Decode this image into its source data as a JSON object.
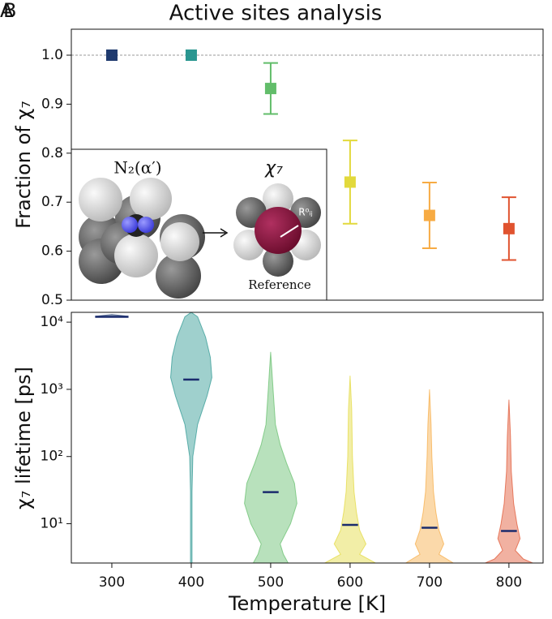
{
  "chart_data": [
    {
      "type": "scatter",
      "title": "Active sites analysis",
      "panel_label": "A",
      "ylabel": "Fraction of χ₇",
      "x": [
        300,
        400,
        500,
        600,
        700,
        800
      ],
      "values": [
        1.0,
        1.0,
        0.932,
        0.741,
        0.673,
        0.646
      ],
      "errors": [
        0,
        0,
        0.052,
        0.085,
        0.067,
        0.064
      ],
      "colors": [
        "#1f3a6e",
        "#2a9690",
        "#62bd6a",
        "#e2d93c",
        "#f7ab43",
        "#e0532f"
      ],
      "xlim": [
        249,
        843
      ],
      "ylim": [
        0.5,
        1.053
      ],
      "yticks": [
        0.5,
        0.6,
        0.7,
        0.8,
        0.9,
        {
          "value": 1,
          "label": "1.0"
        }
      ],
      "hline": 1,
      "inset": {
        "left_label": "N₂(α′)",
        "right_label": "χ₇",
        "distance_label": "R⁰ᵢⱼ",
        "caption": "Reference"
      }
    },
    {
      "type": "violin",
      "panel_label": "B",
      "xlabel": "Temperature [K]",
      "ylabel": "χ₇ lifetime [ps]",
      "x": [
        300,
        400,
        500,
        600,
        700,
        800
      ],
      "medians": [
        12000,
        1400,
        29.5,
        9.6,
        8.7,
        7.8
      ],
      "colors": [
        "#1f3a6e",
        "#2a9690",
        "#62bd6a",
        "#e2d93c",
        "#f7ab43",
        "#e0532f"
      ],
      "median_color": "#1a2b6d",
      "violins": [
        {
          "values": [
            13000,
            12200,
            12000
          ],
          "widths": [
            0,
            21,
            0
          ]
        },
        {
          "values": [
            14000,
            12000,
            6000,
            3000,
            1500,
            800,
            300,
            100,
            30,
            2.6
          ],
          "widths": [
            0,
            8,
            18,
            24,
            26,
            20,
            8,
            2,
            1,
            1
          ]
        },
        {
          "values": [
            3600,
            1000,
            300,
            150,
            80,
            40,
            20,
            10,
            5,
            3.5,
            2.6
          ],
          "widths": [
            0,
            3,
            6,
            12,
            20,
            30,
            33,
            25,
            12,
            16,
            22
          ]
        },
        {
          "values": [
            1600,
            500,
            100,
            30,
            15,
            8,
            5,
            3.5,
            2.6
          ],
          "widths": [
            0,
            2,
            3,
            5,
            8,
            12,
            20,
            12,
            32
          ]
        },
        {
          "values": [
            1000,
            300,
            100,
            30,
            15,
            8,
            5,
            3.5,
            2.6
          ],
          "widths": [
            0,
            2,
            3,
            5,
            8,
            12,
            18,
            12,
            30
          ]
        },
        {
          "values": [
            700,
            200,
            60,
            20,
            10,
            6,
            4,
            3,
            2.6
          ],
          "widths": [
            0,
            2,
            3,
            6,
            10,
            14,
            8,
            18,
            30
          ]
        }
      ],
      "xlim": [
        249,
        843
      ],
      "ylim": [
        2.6,
        14000
      ],
      "log_scale": true,
      "xticks": [
        300,
        400,
        500,
        600,
        700,
        800
      ],
      "yticks": [
        {
          "value": 10,
          "label": "10¹"
        },
        {
          "value": 100,
          "label": "10²"
        },
        {
          "value": 1000,
          "label": "10³"
        },
        {
          "value": 10000,
          "label": "10⁴"
        }
      ]
    }
  ]
}
